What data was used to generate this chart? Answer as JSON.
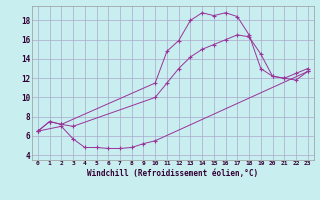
{
  "xlabel": "Windchill (Refroidissement éolien,°C)",
  "background_color": "#c8eef0",
  "line_color": "#993399",
  "grid_color": "#aaaacc",
  "xlim": [
    -0.5,
    23.5
  ],
  "ylim": [
    3.5,
    19.5
  ],
  "xticks": [
    0,
    1,
    2,
    3,
    4,
    5,
    6,
    7,
    8,
    9,
    10,
    11,
    12,
    13,
    14,
    15,
    16,
    17,
    18,
    19,
    20,
    21,
    22,
    23
  ],
  "yticks": [
    4,
    6,
    8,
    10,
    12,
    14,
    16,
    18
  ],
  "line1_x": [
    0,
    1,
    2,
    10,
    11,
    12,
    13,
    14,
    15,
    16,
    17,
    18,
    19,
    20,
    21,
    22,
    23
  ],
  "line1_y": [
    6.5,
    7.5,
    7.2,
    11.5,
    14.8,
    15.9,
    18.0,
    18.8,
    18.5,
    18.8,
    18.4,
    16.5,
    13.0,
    12.2,
    12.0,
    11.8,
    12.7
  ],
  "line2_x": [
    0,
    1,
    2,
    3,
    10,
    11,
    12,
    13,
    14,
    15,
    16,
    17,
    18,
    19,
    20,
    21,
    22,
    23
  ],
  "line2_y": [
    6.5,
    7.5,
    7.2,
    7.0,
    10.0,
    11.5,
    13.0,
    14.2,
    15.0,
    15.5,
    16.0,
    16.5,
    16.3,
    14.5,
    12.2,
    12.0,
    12.5,
    13.0
  ],
  "line3_x": [
    0,
    2,
    3,
    4,
    5,
    6,
    7,
    8,
    9,
    10,
    23
  ],
  "line3_y": [
    6.5,
    7.0,
    5.7,
    4.8,
    4.8,
    4.7,
    4.7,
    4.8,
    5.2,
    5.5,
    12.7
  ]
}
